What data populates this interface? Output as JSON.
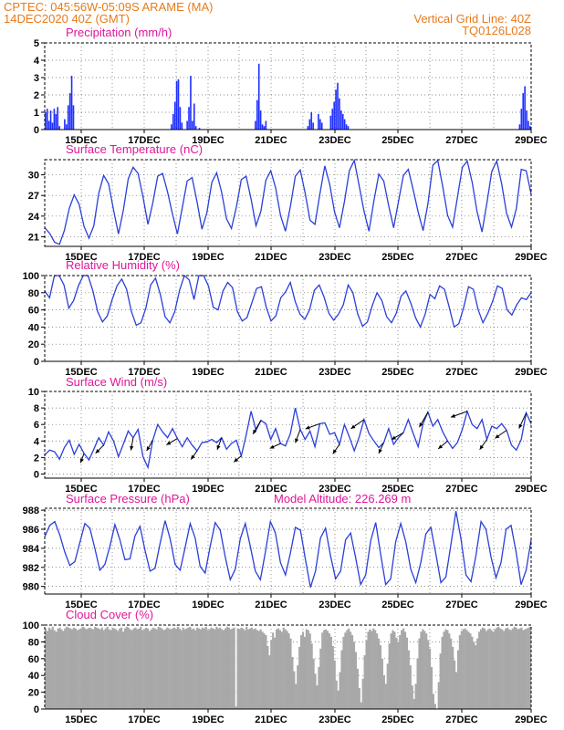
{
  "header": {
    "source_line": "CPTEC:  045:56W-05:09S  ARAME (MA)",
    "date_line": "14DEC2020 40Z (GMT)",
    "grid_note": "Vertical Grid Line: 40Z",
    "run_code": "TQ0126L028"
  },
  "x_axis_ticks": [
    "15DEC",
    "17DEC",
    "19DEC",
    "21DEC",
    "23DEC",
    "25DEC",
    "27DEC",
    "29DEC"
  ],
  "colors": {
    "header": "#e87a1a",
    "titles": "#e0169a",
    "series": "#2b3fd8",
    "bars": "#2030ff",
    "cloud": "#a8a8a8"
  },
  "chart_data": [
    {
      "type": "bar",
      "title": "Precipitation (mm/h)",
      "ylim": [
        0,
        5
      ],
      "yticks": [
        0,
        1,
        2,
        3,
        4,
        5
      ],
      "series": [
        {
          "values": [
            1,
            1.2,
            0.5,
            1.1,
            0.4,
            1.2,
            0.9,
            1.3,
            0.2,
            0,
            0,
            0.6,
            0.3,
            1.4,
            2.1,
            3.1,
            1.4,
            0,
            0,
            0,
            0,
            0,
            0,
            0,
            0,
            0,
            0,
            0,
            0,
            0,
            0,
            0,
            0,
            0,
            0,
            0,
            0,
            0,
            0,
            0,
            0,
            0,
            0,
            0,
            0,
            0,
            0,
            0,
            0,
            0,
            0,
            0,
            0,
            0,
            0,
            0,
            0,
            0,
            0,
            0,
            0,
            0,
            0,
            0,
            0,
            0,
            0,
            0,
            0,
            0,
            0,
            0,
            0.3,
            0.9,
            1.6,
            2.8,
            2.9,
            1.3,
            0.4,
            0,
            0,
            0.5,
            1.3,
            3.1,
            0.5,
            1.5,
            0.2,
            0,
            0.1,
            0,
            0,
            0,
            0,
            0,
            0,
            0,
            0,
            0,
            0,
            0,
            0,
            0,
            0,
            0,
            0,
            0,
            0,
            0,
            0,
            0,
            0,
            0,
            0,
            0,
            0,
            0,
            0,
            0,
            0,
            0,
            0.5,
            1.7,
            3.8,
            1.1,
            0.3,
            0.2,
            0.5,
            0,
            0,
            0,
            0,
            0,
            0,
            0,
            0,
            0,
            0,
            0,
            0,
            0,
            0,
            0,
            0,
            0,
            0,
            0,
            0,
            0,
            0,
            0,
            0.2,
            0.6,
            1,
            0.4,
            0,
            0,
            0.9,
            0.6,
            0.4,
            0,
            0,
            0,
            0,
            0.8,
            1.2,
            1.6,
            2.3,
            2.7,
            1.8,
            1.1,
            0.9,
            0.6,
            0.3,
            0.2,
            0,
            0,
            0,
            0,
            0,
            0,
            0,
            0,
            0,
            0,
            0,
            0,
            0,
            0,
            0,
            0,
            0,
            0,
            0,
            0,
            0,
            0,
            0,
            0,
            0,
            0,
            0,
            0,
            0,
            0,
            0,
            0,
            0,
            0,
            0,
            0,
            0,
            0,
            0,
            0,
            0,
            0,
            0,
            0,
            0,
            0,
            0,
            0,
            0,
            0,
            0,
            0,
            0,
            0,
            0,
            0,
            0,
            0,
            0,
            0,
            0,
            0,
            0,
            0,
            0,
            0,
            0,
            0,
            0,
            0,
            0,
            0,
            0,
            0,
            0,
            0,
            0,
            0,
            0,
            0,
            0,
            0,
            0,
            0,
            0,
            0,
            0,
            0,
            0,
            0,
            0,
            0,
            0,
            0,
            0,
            0,
            0,
            0.3,
            1.2,
            2.1,
            2.5,
            1.1,
            0.5,
            0.2
          ]
        }
      ]
    },
    {
      "type": "line",
      "title": "Surface Temperature (nC)",
      "ylim": [
        19.6,
        32.2
      ],
      "yticks": [
        21,
        24,
        27,
        30
      ],
      "series": [
        {
          "values": [
            22.3,
            21.5,
            20.2,
            19.9,
            21.9,
            25.1,
            27.1,
            25.7,
            22.5,
            20.8,
            22.6,
            27.3,
            29.9,
            28.7,
            24.9,
            21.4,
            24.8,
            29.4,
            31.1,
            30.2,
            26.8,
            22.8,
            25.9,
            29.8,
            30.2,
            27.5,
            24.3,
            21.4,
            25.2,
            29.1,
            29.6,
            26.1,
            22.1,
            24.5,
            28.9,
            30.3,
            27.5,
            23.6,
            22.2,
            25.3,
            29.3,
            29.8,
            26.5,
            22.6,
            24.7,
            29.2,
            30.6,
            28.1,
            24.1,
            21.8,
            25.4,
            29.8,
            30.7,
            27.4,
            23.4,
            22.8,
            27.2,
            31.3,
            28.6,
            24.6,
            22.3,
            26.1,
            30.6,
            32.1,
            28.4,
            24.7,
            21.8,
            26.2,
            30.1,
            29.1,
            25.5,
            22.3,
            26.1,
            29.9,
            30.8,
            27.8,
            24.6,
            21.9,
            25.8,
            31.4,
            32.1,
            28.3,
            24.1,
            22.4,
            26.7,
            31.1,
            32.0,
            28.9,
            24.6,
            21.7,
            25.9,
            30.5,
            32.0,
            28.7,
            24.4,
            22.4,
            25.1,
            30.8,
            30.6,
            27.2
          ]
        }
      ]
    },
    {
      "type": "line",
      "title": "Relative Humidity (%)",
      "ylim": [
        0,
        100
      ],
      "yticks": [
        0,
        20,
        40,
        60,
        80,
        100
      ],
      "series": [
        {
          "values": [
            82,
            74,
            100,
            100,
            89,
            62,
            71,
            88,
            100,
            100,
            82,
            58,
            46,
            53,
            72,
            88,
            96,
            84,
            58,
            42,
            45,
            62,
            89,
            97,
            78,
            52,
            45,
            58,
            83,
            100,
            95,
            72,
            100,
            100,
            88,
            63,
            60,
            82,
            92,
            86,
            58,
            47,
            51,
            68,
            85,
            87,
            63,
            47,
            53,
            74,
            81,
            92,
            70,
            55,
            49,
            60,
            83,
            89,
            75,
            56,
            48,
            55,
            66,
            89,
            80,
            55,
            41,
            46,
            65,
            80,
            71,
            52,
            45,
            56,
            76,
            82,
            68,
            51,
            40,
            55,
            78,
            73,
            88,
            84,
            63,
            40,
            44,
            63,
            87,
            84,
            60,
            45,
            56,
            70,
            88,
            85,
            60,
            54,
            66,
            74,
            72,
            80
          ]
        }
      ]
    },
    {
      "type": "line",
      "title": "Surface Wind (m/s)",
      "ylim": [
        -0.5,
        10
      ],
      "yticks": [
        0,
        2,
        4,
        6,
        8,
        10
      ],
      "series": [
        {
          "values": [
            2.3,
            2.9,
            2.7,
            1.8,
            3.2,
            4.1,
            2.4,
            3.6,
            2.5,
            1.7,
            3.0,
            4.4,
            3.5,
            5.1,
            4.0,
            2.1,
            3.6,
            5.2,
            4.4,
            5.4,
            2.1,
            0.8,
            4.1,
            6.0,
            5.1,
            4.4,
            5.5,
            4.3,
            3.3,
            4.4,
            3.5,
            2.8,
            3.8,
            3.9,
            4.2,
            3.8,
            4.4,
            3.0,
            3.7,
            4.1,
            2.2,
            4.7,
            7.6,
            5.3,
            6.5,
            6.1,
            4.2,
            5.5,
            3.7,
            3.4,
            4.9,
            8.0,
            5.4,
            4.2,
            5.2,
            3.3,
            6.1,
            6.2,
            4.8,
            5.0,
            3.6,
            6.0,
            4.5,
            2.8,
            4.5,
            6.6,
            4.9,
            4.0,
            3.2,
            3.8,
            5.5,
            3.6,
            4.4,
            5.0,
            6.6,
            4.9,
            3.3,
            6.1,
            7.5,
            5.8,
            6.6,
            5.1,
            4.0,
            3.1,
            3.8,
            5.4,
            7.6,
            6.0,
            5.5,
            6.6,
            4.2,
            5.8,
            5.5,
            6.1,
            5.3,
            3.5,
            2.9,
            4.2,
            7.4,
            6.1
          ]
        }
      ]
    },
    {
      "type": "line",
      "title": "Surface Pressure (hPa)",
      "annotation": "Model Altitude: 226.269  m",
      "ylim": [
        979.2,
        988.2
      ],
      "yticks": [
        980,
        982,
        984,
        986,
        988
      ],
      "series": [
        {
          "values": [
            985.2,
            986.4,
            986.8,
            985.4,
            983.6,
            982.2,
            982.6,
            984.6,
            986.6,
            986.1,
            984.0,
            981.7,
            982.3,
            984.2,
            986.5,
            984.9,
            982.8,
            982.9,
            985.3,
            986.3,
            983.8,
            981.6,
            981.9,
            984.5,
            986.9,
            985.0,
            982.3,
            981.7,
            984.1,
            986.6,
            985.1,
            982.1,
            981.4,
            984.2,
            986.7,
            985.9,
            983.1,
            980.7,
            981.8,
            985.0,
            986.6,
            984.2,
            981.6,
            980.7,
            983.6,
            986.8,
            985.6,
            982.5,
            981.2,
            983.5,
            986.2,
            985.9,
            982.8,
            979.9,
            981.6,
            985.1,
            986.1,
            983.2,
            980.8,
            981.6,
            984.9,
            985.6,
            983.0,
            980.2,
            981.2,
            984.8,
            986.7,
            983.3,
            980.2,
            980.8,
            984.7,
            986.6,
            984.7,
            981.8,
            980.4,
            982.5,
            985.5,
            986.2,
            983.4,
            980.4,
            981.0,
            984.4,
            987.9,
            985.0,
            981.2,
            980.5,
            983.3,
            986.8,
            986.0,
            983.1,
            980.9,
            982.5,
            986.0,
            986.4,
            983.6,
            980.2,
            981.7,
            984.9
          ]
        }
      ]
    },
    {
      "type": "bar",
      "title": "Cloud Cover (%)",
      "ylim": [
        0,
        100
      ],
      "yticks": [
        0,
        20,
        40,
        60,
        80,
        100
      ],
      "series": [
        {
          "values": [
            96,
            93,
            97,
            95,
            98,
            94,
            92,
            96,
            97,
            95,
            93,
            96,
            98,
            97,
            96,
            95,
            97,
            96,
            94,
            95,
            96,
            98,
            97,
            95,
            96,
            97,
            96,
            95,
            98,
            97,
            96,
            95,
            97,
            94,
            96,
            98,
            95,
            94,
            97,
            96,
            95,
            93,
            96,
            97,
            92,
            96,
            98,
            97,
            95,
            94,
            96,
            97,
            95,
            96,
            98,
            94,
            95,
            97,
            96,
            93,
            95,
            97,
            96,
            95,
            98,
            97,
            96,
            94,
            95,
            97,
            96,
            95,
            96,
            97,
            95,
            98,
            96,
            94,
            97,
            95,
            96,
            97,
            98,
            95,
            96,
            94,
            97,
            96,
            95,
            97,
            96,
            98,
            94,
            95,
            97,
            96,
            95,
            98,
            96,
            97,
            95,
            94,
            96,
            98,
            97,
            95,
            96,
            97,
            3,
            96,
            95,
            97,
            96,
            94,
            98,
            95,
            96,
            97,
            95,
            96,
            94,
            93,
            95,
            92,
            90,
            88,
            75,
            64,
            82,
            91,
            85,
            95,
            96,
            94,
            92,
            97,
            95,
            93,
            90,
            84,
            62,
            45,
            30,
            52,
            74,
            88,
            92,
            86,
            95,
            94,
            90,
            78,
            60,
            42,
            28,
            50,
            72,
            91,
            94,
            95,
            93,
            90,
            86,
            75,
            58,
            34,
            22,
            44,
            70,
            86,
            91,
            94,
            96,
            92,
            88,
            80,
            68,
            48,
            25,
            8,
            36,
            64,
            82,
            92,
            95,
            93,
            96,
            94,
            90,
            84,
            76,
            60,
            40,
            30,
            54,
            78,
            90,
            94,
            92,
            85,
            80,
            88,
            94,
            96,
            92,
            85,
            70,
            52,
            28,
            12,
            30,
            60,
            84,
            92,
            95,
            93,
            90,
            82,
            72,
            50,
            18,
            6,
            0,
            32,
            66,
            86,
            92,
            95,
            94,
            90,
            84,
            74,
            58,
            44,
            70,
            88,
            93,
            95,
            96,
            94,
            92,
            90,
            86,
            80,
            76,
            84,
            92,
            95,
            97,
            96,
            93,
            95,
            96,
            94,
            92,
            95,
            97,
            98,
            96,
            95,
            93,
            96,
            97,
            95,
            94,
            96,
            98,
            97,
            95,
            96,
            97,
            94,
            95,
            96,
            97,
            98
          ]
        }
      ]
    }
  ]
}
